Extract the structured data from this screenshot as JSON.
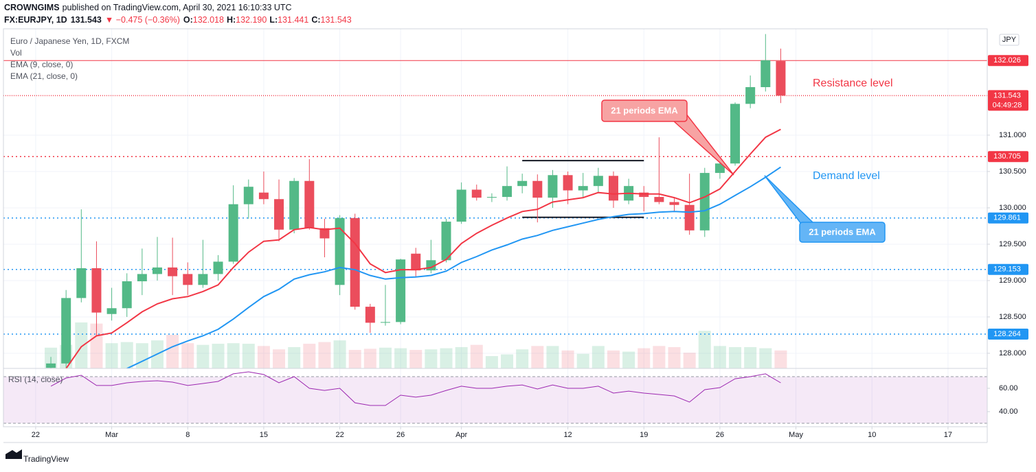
{
  "header": {
    "publisher": "CROWNGIMS",
    "published": "published on TradingView.com, April 30, 2021 16:10:33 UTC",
    "symbol": "FX:EURJPY, 1D",
    "last": "131.543",
    "change": "▼ −0.475 (−0.36%)",
    "quote": [
      {
        "label": "O:",
        "value": "132.018"
      },
      {
        "label": "H:",
        "value": "132.190"
      },
      {
        "label": "L:",
        "value": "131.441"
      },
      {
        "label": "C:",
        "value": "131.543"
      }
    ]
  },
  "chart_data": {
    "type": "candlestick",
    "instrument": "Euro / Japanese Yen, 1D, FXCM",
    "volume_label": "Vol",
    "currency": "JPY",
    "up_color": "#53b987",
    "down_color": "#eb4d5c",
    "grid": true,
    "x": [
      1,
      2,
      3,
      4,
      5,
      6,
      7,
      8,
      9,
      10,
      11,
      12,
      13,
      14,
      15,
      16,
      17,
      18,
      19,
      20,
      21,
      22,
      23,
      24,
      25,
      26,
      27,
      28,
      29,
      30,
      31,
      32,
      33,
      34,
      35,
      36,
      37,
      38,
      39,
      40,
      41,
      42,
      43,
      44,
      45,
      46,
      47,
      48,
      49
    ],
    "open": [
      127.8,
      127.86,
      128.76,
      129.17,
      128.54,
      128.62,
      128.99,
      129.09,
      129.18,
      129.09,
      128.94,
      129.09,
      129.26,
      130.05,
      130.21,
      130.12,
      129.7,
      130.37,
      129.72,
      128.94,
      129.86,
      128.64,
      128.42,
      128.43,
      129.37,
      129.14,
      129.28,
      129.81,
      130.25,
      130.14,
      130.15,
      130.3,
      130.37,
      130.14,
      130.45,
      130.24,
      130.3,
      130.44,
      130.1,
      130.21,
      130.15,
      130.08,
      130.04,
      129.69,
      130.48,
      130.61,
      131.43,
      131.66,
      132.018
    ],
    "high": [
      127.95,
      128.87,
      129.98,
      129.54,
      128.9,
      129.1,
      129.44,
      129.6,
      129.59,
      129.25,
      129.56,
      129.35,
      130.31,
      130.39,
      130.5,
      130.39,
      130.41,
      130.67,
      129.85,
      129.9,
      129.92,
      128.68,
      128.94,
      129.3,
      129.45,
      129.56,
      129.85,
      130.35,
      130.32,
      130.2,
      130.57,
      130.47,
      130.46,
      130.52,
      130.5,
      130.48,
      130.55,
      130.5,
      130.4,
      130.3,
      130.97,
      130.15,
      130.47,
      130.55,
      130.65,
      131.45,
      131.82,
      132.39,
      132.19
    ],
    "low": [
      127.75,
      127.8,
      128.7,
      128.24,
      128.45,
      128.5,
      128.8,
      129.0,
      128.8,
      128.8,
      128.9,
      129.0,
      129.23,
      129.85,
      130.05,
      129.54,
      129.65,
      129.7,
      129.32,
      128.8,
      128.6,
      128.28,
      128.38,
      128.4,
      129.05,
      129.1,
      129.25,
      129.78,
      130.1,
      130.08,
      130.1,
      130.2,
      129.8,
      130.0,
      130.05,
      130.15,
      130.2,
      130.0,
      130.05,
      129.95,
      130.05,
      129.95,
      129.63,
      129.6,
      130.4,
      130.58,
      131.37,
      131.6,
      131.441
    ],
    "close": [
      127.86,
      128.76,
      129.17,
      128.56,
      128.62,
      128.99,
      129.09,
      129.18,
      129.06,
      128.94,
      129.09,
      129.26,
      130.05,
      130.29,
      130.12,
      129.7,
      130.37,
      129.72,
      129.58,
      129.86,
      128.64,
      128.42,
      128.43,
      129.29,
      129.14,
      129.28,
      129.81,
      130.25,
      130.14,
      130.15,
      130.3,
      130.37,
      130.14,
      130.45,
      130.24,
      130.3,
      130.44,
      130.1,
      130.3,
      130.15,
      130.08,
      130.04,
      129.69,
      130.48,
      130.61,
      131.43,
      131.66,
      132.03,
      131.543
    ],
    "volume": [
      37,
      42,
      82,
      80,
      45,
      47,
      45,
      50,
      60,
      45,
      42,
      44,
      45,
      44,
      40,
      34,
      38,
      44,
      47,
      50,
      33,
      35,
      37,
      36,
      33,
      34,
      36,
      38,
      42,
      22,
      25,
      34,
      40,
      40,
      32,
      26,
      40,
      32,
      30,
      36,
      40,
      38,
      28,
      67,
      40,
      38,
      38,
      36,
      32
    ],
    "series": [
      {
        "name": "EMA (9, close, 0)",
        "color": "#f23645",
        "values": [
          null,
          127.79,
          128.09,
          128.24,
          128.28,
          128.42,
          128.57,
          128.68,
          128.75,
          128.78,
          128.85,
          128.94,
          129.18,
          129.39,
          129.54,
          129.56,
          129.7,
          129.73,
          129.7,
          129.72,
          129.51,
          129.23,
          129.11,
          129.15,
          129.15,
          129.18,
          129.29,
          129.51,
          129.65,
          129.76,
          129.86,
          129.95,
          129.98,
          130.08,
          130.11,
          130.14,
          130.21,
          130.19,
          130.2,
          130.19,
          130.19,
          130.14,
          130.07,
          130.15,
          130.26,
          130.5,
          130.74,
          130.97,
          131.08
        ]
      },
      {
        "name": "EMA (21, close, 0)",
        "color": "#2196f3",
        "values": [
          null,
          null,
          null,
          null,
          null,
          127.79,
          127.89,
          127.99,
          128.09,
          128.17,
          128.24,
          128.33,
          128.47,
          128.63,
          128.78,
          128.88,
          129.02,
          129.08,
          129.12,
          129.18,
          129.15,
          129.07,
          129.02,
          129.04,
          129.05,
          129.07,
          129.13,
          129.25,
          129.33,
          129.42,
          129.49,
          129.57,
          129.62,
          129.69,
          129.74,
          129.79,
          129.84,
          129.88,
          129.91,
          129.92,
          129.94,
          129.95,
          129.94,
          129.96,
          130.05,
          130.17,
          130.29,
          130.42,
          130.56
        ]
      }
    ],
    "xlim": [
      -2.12,
      62.58
    ],
    "xticks": [
      {
        "value": 0,
        "label": "22"
      },
      {
        "value": 5,
        "label": "Mar"
      },
      {
        "value": 10,
        "label": "8"
      },
      {
        "value": 15,
        "label": "15"
      },
      {
        "value": 20,
        "label": "22"
      },
      {
        "value": 24,
        "label": "26"
      },
      {
        "value": 28,
        "label": "Apr"
      },
      {
        "value": 35,
        "label": "12"
      },
      {
        "value": 40,
        "label": "19"
      },
      {
        "value": 45,
        "label": "26"
      },
      {
        "value": 50,
        "label": "May"
      },
      {
        "value": 55,
        "label": "10"
      },
      {
        "value": 60,
        "label": "17"
      }
    ],
    "ylim": [
      127.792,
      132.462
    ],
    "yticks": [
      {
        "value": 128,
        "label": "128.000"
      },
      {
        "value": 128.5,
        "label": "128.500"
      },
      {
        "value": 129,
        "label": "129.000"
      },
      {
        "value": 129.5,
        "label": "129.500"
      },
      {
        "value": 130,
        "label": "130.000"
      },
      {
        "value": 130.5,
        "label": "130.500"
      },
      {
        "value": 131,
        "label": "131.000"
      }
    ],
    "levels": [
      {
        "value": 132.026,
        "label": "132.026",
        "color": "#f23645",
        "style": "solid"
      },
      {
        "value": 131.543,
        "label": "131.543",
        "sublabel": "04:49:28",
        "color": "#f23645",
        "style": "fine"
      },
      {
        "value": 130.705,
        "label": "130.705",
        "color": "#f23645",
        "style": "dotted"
      },
      {
        "value": 129.861,
        "label": "129.861",
        "color": "#2196f3",
        "style": "dotted"
      },
      {
        "value": 129.153,
        "label": "129.153",
        "color": "#2196f3",
        "style": "dotted"
      },
      {
        "value": 128.264,
        "label": "128.264",
        "color": "#2196f3",
        "style": "dotted"
      }
    ],
    "ranges": [
      {
        "y": 130.65,
        "x": [
          32,
          40
        ]
      },
      {
        "y": 129.87,
        "x": [
          32,
          40
        ]
      }
    ],
    "annotations": [
      {
        "text": "Resistance level"
      },
      {
        "text": "Demand level"
      },
      {
        "text": "21 periods EMA"
      },
      {
        "text": "21 periods EMA"
      }
    ],
    "rsi": {
      "name": "RSI (14, close)",
      "color": "#9c27b0",
      "values": [
        61.8,
        68.8,
        71.2,
        62.4,
        62.4,
        64.7,
        65.9,
        66.5,
        65.3,
        62.4,
        64.1,
        65.9,
        72.4,
        74.1,
        71.8,
        64.7,
        70.0,
        60.0,
        58.2,
        60.0,
        47.6,
        45.3,
        45.3,
        54.1,
        52.4,
        54.1,
        58.2,
        61.8,
        60.0,
        60.0,
        61.8,
        62.9,
        59.4,
        62.9,
        60.0,
        60.0,
        61.8,
        55.9,
        57.6,
        55.9,
        54.7,
        53.5,
        48.2,
        58.8,
        60.6,
        68.2,
        70.0,
        72.4,
        64.7
      ],
      "ylim": [
        27.06,
        77.06
      ],
      "yticks": [
        {
          "value": 60,
          "label": "60.00"
        },
        {
          "value": 40,
          "label": "40.00"
        }
      ],
      "bands": [
        70,
        30
      ]
    }
  },
  "footer": {
    "brand": "TradingView"
  }
}
